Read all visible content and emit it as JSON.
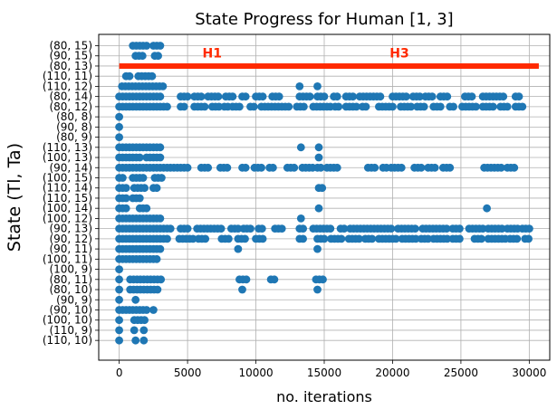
{
  "chart_data": {
    "type": "scatter",
    "title": "State Progress for Human [1, 3]",
    "xlabel": "no. iterations",
    "ylabel": "State (Tl, Ta)",
    "xlim": [
      -1500,
      31500
    ],
    "xticks": [
      0,
      5000,
      10000,
      15000,
      20000,
      25000,
      30000
    ],
    "xtick_labels": [
      "0",
      "5000",
      "10000",
      "15000",
      "20000",
      "25000",
      "30000"
    ],
    "grid": true,
    "marker_color": "#1f77b4",
    "line_color": "#ff2a00",
    "categories": [
      "(80, 15)",
      "(90, 15)",
      "(80, 13)",
      "(110, 11)",
      "(110, 12)",
      "(80, 14)",
      "(80, 12)",
      "(80, 8)",
      "(90, 8)",
      "(80, 9)",
      "(110, 13)",
      "(100, 13)",
      "(90, 14)",
      "(100, 15)",
      "(110, 14)",
      "(110, 15)",
      "(100, 14)",
      "(100, 12)",
      "(90, 13)",
      "(90, 12)",
      "(90, 11)",
      "(100, 11)",
      "(100, 9)",
      "(80, 11)",
      "(80, 10)",
      "(90, 9)",
      "(90, 10)",
      "(100, 10)",
      "(110, 9)",
      "(110, 10)"
    ],
    "series": [
      {
        "name": "",
        "mode": "markers",
        "runs": [
          [
            "(80, 15)",
            [
              [
                1000,
                2000
              ],
              [
                2500,
                3000
              ]
            ]
          ],
          [
            "(90, 15)",
            [
              [
                1200,
                1800
              ],
              [
                2600,
                3000
              ]
            ]
          ],
          [
            "(110, 11)",
            [
              [
                500,
                800
              ],
              [
                1400,
                2400
              ]
            ]
          ],
          [
            "(110, 12)",
            [
              [
                200,
                3200
              ],
              [
                13200,
                13400
              ],
              [
                14500,
                14700
              ]
            ]
          ],
          [
            "(80, 14)",
            [
              [
                0,
                3200
              ],
              [
                4500,
                5000
              ],
              [
                5500,
                6000
              ],
              [
                6500,
                7300
              ],
              [
                7800,
                8500
              ],
              [
                9000,
                9400
              ],
              [
                10000,
                10600
              ],
              [
                11200,
                11800
              ],
              [
                13200,
                14000
              ],
              [
                14500,
                15200
              ],
              [
                15700,
                16000
              ],
              [
                16600,
                17200
              ],
              [
                17600,
                19200
              ],
              [
                20000,
                21200
              ],
              [
                21500,
                22000
              ],
              [
                22400,
                23100
              ],
              [
                23500,
                24200
              ],
              [
                25300,
                26000
              ],
              [
                26600,
                28300
              ],
              [
                29000,
                29400
              ]
            ]
          ],
          [
            "(80, 12)",
            [
              [
                0,
                3500
              ],
              [
                4500,
                4900
              ],
              [
                5500,
                6300
              ],
              [
                6800,
                7300
              ],
              [
                7700,
                8000
              ],
              [
                8300,
                9000
              ],
              [
                9600,
                9900
              ],
              [
                10400,
                12600
              ],
              [
                13000,
                13600
              ],
              [
                14200,
                15500
              ],
              [
                15800,
                16200
              ],
              [
                16600,
                17400
              ],
              [
                17800,
                18100
              ],
              [
                19000,
                20200
              ],
              [
                20600,
                21400
              ],
              [
                21800,
                22400
              ],
              [
                23000,
                23700
              ],
              [
                24200,
                24600
              ],
              [
                25100,
                26100
              ],
              [
                26600,
                27400
              ],
              [
                27900,
                28600
              ],
              [
                29000,
                29500
              ]
            ]
          ],
          [
            "(80, 8)",
            [
              [
                0,
                0
              ]
            ]
          ],
          [
            "(90, 8)",
            [
              [
                0,
                0
              ]
            ]
          ],
          [
            "(80, 9)",
            [
              [
                0,
                0
              ]
            ]
          ],
          [
            "(110, 13)",
            [
              [
                0,
                3000
              ],
              [
                13300,
                13400
              ],
              [
                14600,
                14800
              ]
            ]
          ],
          [
            "(100, 13)",
            [
              [
                0,
                1500
              ],
              [
                2000,
                3000
              ],
              [
                14600,
                14800
              ]
            ]
          ],
          [
            "(90, 14)",
            [
              [
                0,
                5100
              ],
              [
                6000,
                6600
              ],
              [
                7400,
                8000
              ],
              [
                9000,
                9400
              ],
              [
                9900,
                10600
              ],
              [
                11000,
                11400
              ],
              [
                12300,
                13000
              ],
              [
                13400,
                14200
              ],
              [
                14500,
                14800
              ],
              [
                15200,
                16000
              ],
              [
                18200,
                18800
              ],
              [
                19300,
                19600
              ],
              [
                19900,
                20800
              ],
              [
                21600,
                22300
              ],
              [
                22600,
                23300
              ],
              [
                23700,
                24200
              ],
              [
                26700,
                28000
              ],
              [
                28400,
                29000
              ]
            ]
          ],
          [
            "(100, 15)",
            [
              [
                0,
                400
              ],
              [
                1000,
                1800
              ],
              [
                2600,
                3100
              ]
            ]
          ],
          [
            "(110, 14)",
            [
              [
                0,
                500
              ],
              [
                1100,
                2000
              ],
              [
                2500,
                2900
              ],
              [
                14600,
                14900
              ]
            ]
          ],
          [
            "(110, 15)",
            [
              [
                0,
                500
              ],
              [
                1000,
                1500
              ]
            ]
          ],
          [
            "(100, 14)",
            [
              [
                0,
                500
              ],
              [
                1500,
                2200
              ],
              [
                14600,
                14800
              ],
              [
                26900,
                27100
              ]
            ]
          ],
          [
            "(100, 12)",
            [
              [
                0,
                3100
              ],
              [
                13300,
                13500
              ]
            ]
          ],
          [
            "(90, 13)",
            [
              [
                0,
                3800
              ],
              [
                4500,
                5000
              ],
              [
                5700,
                7600
              ],
              [
                8200,
                8800
              ],
              [
                9100,
                9700
              ],
              [
                10200,
                10600
              ],
              [
                11400,
                12000
              ],
              [
                13200,
                13600
              ],
              [
                14200,
                15600
              ],
              [
                16200,
                16600
              ],
              [
                16900,
                20000
              ],
              [
                20400,
                21800
              ],
              [
                22200,
                24000
              ],
              [
                24400,
                25100
              ],
              [
                25600,
                26700
              ],
              [
                27000,
                28000
              ],
              [
                28400,
                29300
              ],
              [
                29500,
                30000
              ]
            ]
          ],
          [
            "(90, 12)",
            [
              [
                0,
                3600
              ],
              [
                4400,
                5400
              ],
              [
                5800,
                6500
              ],
              [
                7500,
                8100
              ],
              [
                8700,
                9400
              ],
              [
                10000,
                10500
              ],
              [
                13200,
                13500
              ],
              [
                14500,
                15200
              ],
              [
                15500,
                16300
              ],
              [
                16800,
                17700
              ],
              [
                18000,
                18500
              ],
              [
                19000,
                20300
              ],
              [
                20700,
                21800
              ],
              [
                22100,
                22600
              ],
              [
                23000,
                24000
              ],
              [
                24400,
                25100
              ],
              [
                26000,
                26700
              ],
              [
                27000,
                28300
              ],
              [
                28600,
                29300
              ],
              [
                29700,
                30000
              ]
            ]
          ],
          [
            "(90, 11)",
            [
              [
                0,
                3100
              ],
              [
                8700,
                8900
              ],
              [
                14500,
                14700
              ]
            ]
          ],
          [
            "(100, 11)",
            [
              [
                0,
                2900
              ]
            ]
          ],
          [
            "(100, 9)",
            [
              [
                0,
                0
              ]
            ]
          ],
          [
            "(80, 11)",
            [
              [
                0,
                200
              ],
              [
                800,
                3100
              ],
              [
                8800,
                9400
              ],
              [
                11100,
                11400
              ],
              [
                14400,
                14900
              ]
            ]
          ],
          [
            "(80, 10)",
            [
              [
                0,
                200
              ],
              [
                800,
                3000
              ],
              [
                9000,
                9200
              ],
              [
                14500,
                14700
              ]
            ]
          ],
          [
            "(90, 9)",
            [
              [
                0,
                200
              ],
              [
                1200,
                1400
              ]
            ]
          ],
          [
            "(90, 10)",
            [
              [
                0,
                2000
              ],
              [
                2500,
                2700
              ]
            ]
          ],
          [
            "(100, 10)",
            [
              [
                0,
                200
              ],
              [
                1100,
                2000
              ]
            ]
          ],
          [
            "(110, 9)",
            [
              [
                0,
                200
              ],
              [
                1100,
                1300
              ],
              [
                1800,
                2000
              ]
            ]
          ],
          [
            "(110, 10)",
            [
              [
                0,
                0
              ],
              [
                1200,
                1400
              ],
              [
                1800,
                2000
              ]
            ]
          ]
        ]
      },
      {
        "name": "",
        "mode": "line",
        "state": "(80, 13)",
        "x": [
          0,
          30700
        ]
      }
    ],
    "annotations": [
      {
        "text": "H1",
        "x": 6800,
        "y": "(90, 15)",
        "color": "#ff2a00"
      },
      {
        "text": "H3",
        "x": 20500,
        "y": "(90, 15)",
        "color": "#ff2a00"
      }
    ]
  }
}
